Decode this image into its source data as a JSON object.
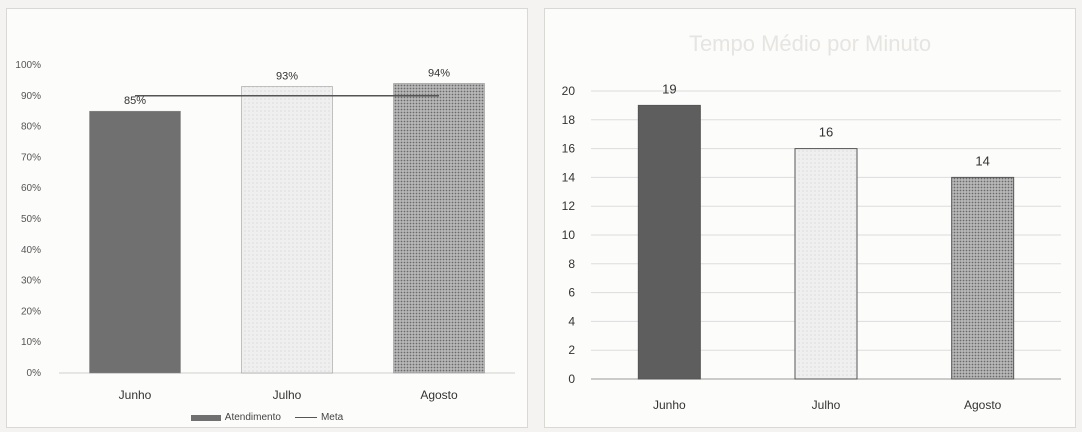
{
  "chart_data": [
    {
      "type": "bar",
      "title": "",
      "categories": [
        "Junho",
        "Julho",
        "Agosto"
      ],
      "series": [
        {
          "name": "Atendimento",
          "type": "bar",
          "values": [
            0.85,
            0.93,
            0.94
          ],
          "labels": [
            "85%",
            "93%",
            "94%"
          ]
        },
        {
          "name": "Meta",
          "type": "line",
          "values": [
            0.9,
            0.9,
            0.9
          ]
        }
      ],
      "ylim": [
        0,
        1
      ],
      "yticks": [
        "0%",
        "10%",
        "20%",
        "30%",
        "40%",
        "50%",
        "60%",
        "70%",
        "80%",
        "90%",
        "100%"
      ],
      "grid": false,
      "legend": "bottom",
      "colors": {
        "Junho": "#6f6f6f",
        "Julho": "#ebebeb",
        "Agosto": "#a9a9a9",
        "Meta": "#555555"
      }
    },
    {
      "type": "bar",
      "title": "Tempo Médio por Minuto",
      "categories": [
        "Junho",
        "Julho",
        "Agosto"
      ],
      "values": [
        19,
        16,
        14
      ],
      "labels": [
        "19",
        "16",
        "14"
      ],
      "ylim": [
        0,
        20
      ],
      "yticks": [
        "0",
        "2",
        "4",
        "6",
        "8",
        "10",
        "12",
        "14",
        "16",
        "18",
        "20"
      ],
      "grid": true,
      "colors": {
        "Junho": "#5e5e5e",
        "Julho": "#ececec",
        "Agosto": "#9c9c9c"
      }
    }
  ]
}
